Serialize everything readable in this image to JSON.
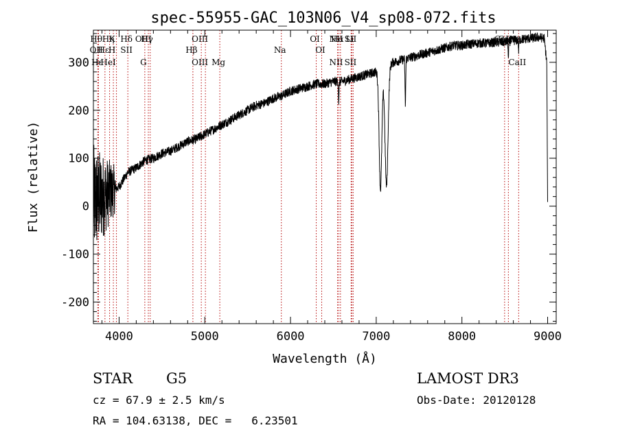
{
  "chart_data": {
    "type": "line",
    "title": "spec-55955-GAC_103N06_V4_sp08-072.fits",
    "xlabel": "Wavelength (Å)",
    "ylabel": "Flux (relative)",
    "xlim": [
      3700,
      9100
    ],
    "ylim": [
      -245,
      367
    ],
    "x_ticks": [
      4000,
      5000,
      6000,
      7000,
      8000,
      9000
    ],
    "y_ticks": [
      -200,
      -100,
      0,
      100,
      200,
      300
    ],
    "series": [
      {
        "name": "flux",
        "anchors": [
          [
            3700,
            10
          ],
          [
            3800,
            20
          ],
          [
            3900,
            30
          ],
          [
            4000,
            40
          ],
          [
            4100,
            70
          ],
          [
            4200,
            80
          ],
          [
            4300,
            95
          ],
          [
            4400,
            100
          ],
          [
            4500,
            110
          ],
          [
            4600,
            115
          ],
          [
            4700,
            125
          ],
          [
            4800,
            135
          ],
          [
            4900,
            140
          ],
          [
            5000,
            150
          ],
          [
            5100,
            160
          ],
          [
            5200,
            170
          ],
          [
            5300,
            180
          ],
          [
            5400,
            190
          ],
          [
            5500,
            200
          ],
          [
            5600,
            210
          ],
          [
            5700,
            215
          ],
          [
            5800,
            225
          ],
          [
            5900,
            230
          ],
          [
            6000,
            240
          ],
          [
            6100,
            245
          ],
          [
            6200,
            250
          ],
          [
            6300,
            255
          ],
          [
            6400,
            255
          ],
          [
            6500,
            260
          ],
          [
            6600,
            260
          ],
          [
            6700,
            265
          ],
          [
            6800,
            270
          ],
          [
            6900,
            275
          ],
          [
            7000,
            280
          ],
          [
            7100,
            290
          ],
          [
            7200,
            300
          ],
          [
            7300,
            305
          ],
          [
            7400,
            310
          ],
          [
            7500,
            315
          ],
          [
            7600,
            320
          ],
          [
            7700,
            325
          ],
          [
            7800,
            330
          ],
          [
            7900,
            335
          ],
          [
            8000,
            335
          ],
          [
            8100,
            338
          ],
          [
            8200,
            340
          ],
          [
            8300,
            340
          ],
          [
            8400,
            342
          ],
          [
            8500,
            342
          ],
          [
            8600,
            345
          ],
          [
            8700,
            348
          ],
          [
            8800,
            350
          ],
          [
            8900,
            352
          ],
          [
            8960,
            350
          ],
          [
            8990,
            300
          ],
          [
            9000,
            0
          ]
        ],
        "dips": [
          {
            "x": 6563,
            "depth": 45,
            "width": 5
          },
          {
            "x": 7050,
            "depth": 250,
            "width": 22
          },
          {
            "x": 7120,
            "depth": 250,
            "width": 25
          },
          {
            "x": 7340,
            "depth": 95,
            "width": 6
          },
          {
            "x": 8542,
            "depth": 40,
            "width": 4
          },
          {
            "x": 8662,
            "depth": 25,
            "width": 4
          }
        ],
        "noise": {
          "low_end_amplitude": 120,
          "low_end_until": 3960,
          "general_amplitude": 10
        }
      }
    ],
    "line_markers": [
      {
        "x": 3750,
        "top": "Hθ",
        "bottom": "OII"
      },
      {
        "x": 3760,
        "top": "",
        "bottom": "Hε"
      },
      {
        "x": 3835,
        "top": "",
        "bottom": "Hε"
      },
      {
        "x": 3889,
        "top": "Hη",
        "bottom": "HeI"
      },
      {
        "x": 3933,
        "top": "K",
        "bottom": "H"
      },
      {
        "x": 3969,
        "top": "",
        "bottom": ""
      },
      {
        "x": 4102,
        "top": "Hδ",
        "bottom": "SII"
      },
      {
        "x": 4300,
        "top": "OIII",
        "bottom": "G"
      },
      {
        "x": 4341,
        "top": "Hγ",
        "bottom": ""
      },
      {
        "x": 4363,
        "top": "",
        "bottom": ""
      },
      {
        "x": 4861,
        "top": "",
        "bottom": "Hβ"
      },
      {
        "x": 4959,
        "top": "OIII",
        "bottom": "OIII"
      },
      {
        "x": 5007,
        "top": "",
        "bottom": ""
      },
      {
        "x": 5175,
        "top": "",
        "bottom": "Mg"
      },
      {
        "x": 5893,
        "top": "",
        "bottom": "Na"
      },
      {
        "x": 6300,
        "top": "OI",
        "bottom": ""
      },
      {
        "x": 6364,
        "top": "",
        "bottom": "OI"
      },
      {
        "x": 6548,
        "top": "NII",
        "bottom": "NII"
      },
      {
        "x": 6563,
        "top": "Hα",
        "bottom": ""
      },
      {
        "x": 6583,
        "top": "",
        "bottom": ""
      },
      {
        "x": 6707,
        "top": "Li",
        "bottom": ""
      },
      {
        "x": 6716,
        "top": "SII",
        "bottom": "SII"
      },
      {
        "x": 6731,
        "top": "",
        "bottom": ""
      },
      {
        "x": 8498,
        "top": "CaII",
        "bottom": ""
      },
      {
        "x": 8542,
        "top": "CaII",
        "bottom": ""
      },
      {
        "x": 8662,
        "top": "",
        "bottom": "CaII"
      }
    ]
  },
  "info": {
    "class": "STAR",
    "subclass": "G5",
    "survey": "LAMOST DR3",
    "cz": "cz = 67.9 ± 2.5 km/s",
    "obs_date": "Obs-Date: 20120128",
    "radec": "RA = 104.63138, DEC =   6.23501"
  }
}
